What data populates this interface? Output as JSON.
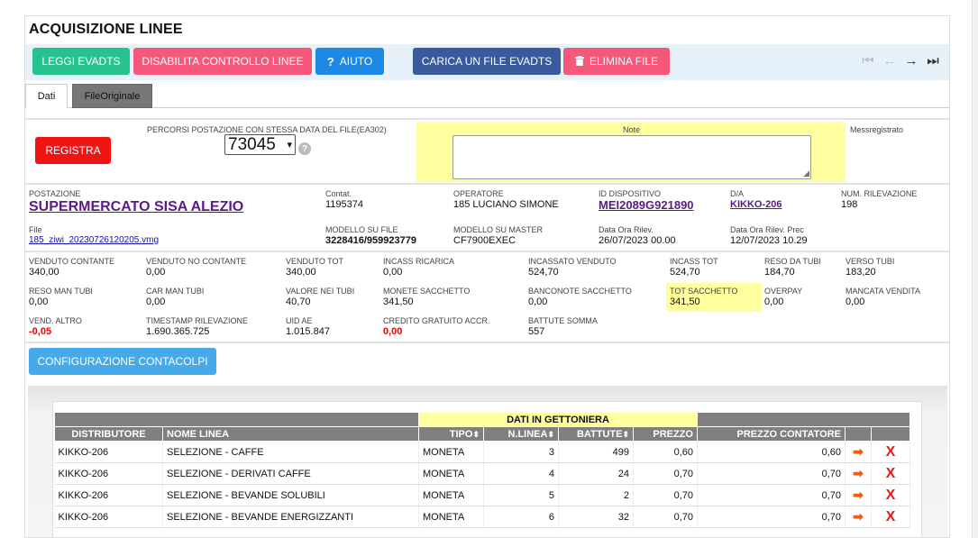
{
  "title": "ACQUISIZIONE LINEE",
  "toolbar": {
    "leggi": "LEGGI EVADTS",
    "disabilita": "DISABILITA CONTROLLO LINEE",
    "aiuto": "AIUTO",
    "carica": "CARICA UN FILE EVADTS",
    "elimina": "ELIMINA FILE"
  },
  "tabs": {
    "dati": "Dati",
    "file_originale": "FileOriginale"
  },
  "form": {
    "registra": "REGISTRA",
    "percorsi_label": "PERCORSI POSTAZIONE CON STESSA DATA DEL FILE(EA302)",
    "percorsi_value": "73045",
    "note_label": "Note",
    "messregistrato_label": "Messregistrato"
  },
  "info": {
    "postazione_label": "POSTAZIONE",
    "postazione_value": "SUPERMERCATO SISA ALEZIO",
    "contat_label": "Contat.",
    "contat_value": "1195374",
    "operatore_label": "OPERATORE",
    "operatore_value": "185 LUCIANO SIMONE",
    "id_dispositivo_label": "ID DISPOSITIVO",
    "id_dispositivo_value": "MEI2089G921890",
    "da_label": "D/A",
    "da_value": "KIKKO-206",
    "num_rilevazione_label": "NUM. RILEVAZIONE",
    "num_rilevazione_value": "198",
    "file_label": "File",
    "file_value": "185_ziwi_20230726120205.vmg",
    "modello_file_label": "MODELLO SU FILE",
    "modello_file_value": "3228416/959923779",
    "modello_master_label": "MODELLO SU MASTER",
    "modello_master_value": "CF7900EXEC",
    "data_ora_label": "Data Ora Rilev.",
    "data_ora_value": "26/07/2023 00.00",
    "data_ora_prec_label": "Data Ora Rilev. Prec",
    "data_ora_prec_value": "12/07/2023 10.29"
  },
  "stats": {
    "venduto_contante_label": "VENDUTO CONTANTE",
    "venduto_contante": "340,00",
    "venduto_no_contante_label": "VENDUTO NO CONTANTE",
    "venduto_no_contante": "0,00",
    "venduto_tot_label": "VENDUTO TOT",
    "venduto_tot": "340,00",
    "incass_ricarica_label": "INCASS RICARICA",
    "incass_ricarica": "0,00",
    "incassato_venduto_label": "INCASSATO VENDUTO",
    "incassato_venduto": "524,70",
    "incass_tot_label": "INCASS TOT",
    "incass_tot": "524,70",
    "reso_da_tubi_label": "RESO DA TUBI",
    "reso_da_tubi": "184,70",
    "verso_tubi_label": "VERSO TUBI",
    "verso_tubi": "183,20",
    "reso_man_tubi_label": "RESO MAN TUBI",
    "reso_man_tubi": "0,00",
    "car_man_tubi_label": "CAR MAN TUBI",
    "car_man_tubi": "0,00",
    "valore_nei_tubi_label": "VALORE NEI TUBI",
    "valore_nei_tubi": "40,70",
    "monete_sacchetto_label": "MONETE SACCHETTO",
    "monete_sacchetto": "341,50",
    "banconote_sacchetto_label": "BANCONOTE SACCHETTO",
    "banconote_sacchetto": "0,00",
    "tot_sacchetto_label": "TOT SACCHETTO",
    "tot_sacchetto": "341,50",
    "overpay_label": "OVERPAY",
    "overpay": "0,00",
    "mancata_vendita_label": "MANCATA VENDITA",
    "mancata_vendita": "0,00",
    "vend_altro_label": "VEND. ALTRO",
    "vend_altro": "-0,05",
    "timestamp_label": "TIMESTAMP RILEVAZIONE",
    "timestamp": "1.690.365.725",
    "uid_ae_label": "UID AE",
    "uid_ae": "1.015.847",
    "credito_label": "CREDITO GRATUITO ACCR.",
    "credito": "0,00",
    "battute_somma_label": "BATTUTE SOMMA",
    "battute_somma": "557"
  },
  "config_button": "CONFIGURAZIONE CONTACOLPI",
  "table": {
    "group_header": "DATI IN GETTONIERA",
    "headers": {
      "distributore": "DISTRIBUTORE",
      "nome_linea": "NOME LINEA",
      "tipo": "TIPO",
      "n_linea": "N.LINEA",
      "battute": "BATTUTE",
      "prezzo": "PREZZO",
      "prezzo_contatore": "PREZZO CONTATORE"
    },
    "rows": [
      {
        "distributore": "KIKKO-206",
        "nome_linea": "SELEZIONE - CAFFE",
        "tipo": "MONETA",
        "n_linea": "3",
        "battute": "499",
        "prezzo": "0,60",
        "prezzo_contatore": "0,60"
      },
      {
        "distributore": "KIKKO-206",
        "nome_linea": "SELEZIONE - DERIVATI CAFFE",
        "tipo": "MONETA",
        "n_linea": "4",
        "battute": "24",
        "prezzo": "0,70",
        "prezzo_contatore": "0,70"
      },
      {
        "distributore": "KIKKO-206",
        "nome_linea": "SELEZIONE - BEVANDE SOLUBILI",
        "tipo": "MONETA",
        "n_linea": "5",
        "battute": "2",
        "prezzo": "0,70",
        "prezzo_contatore": "0,70"
      },
      {
        "distributore": "KIKKO-206",
        "nome_linea": "SELEZIONE - BEVANDE ENERGIZZANTI",
        "tipo": "MONETA",
        "n_linea": "6",
        "battute": "32",
        "prezzo": "0,70",
        "prezzo_contatore": "0,70"
      }
    ]
  },
  "icons": {
    "help": "question-icon",
    "trash": "trash-icon",
    "row_arrow": "arrow-right-icon",
    "row_delete": "delete-x-icon"
  }
}
